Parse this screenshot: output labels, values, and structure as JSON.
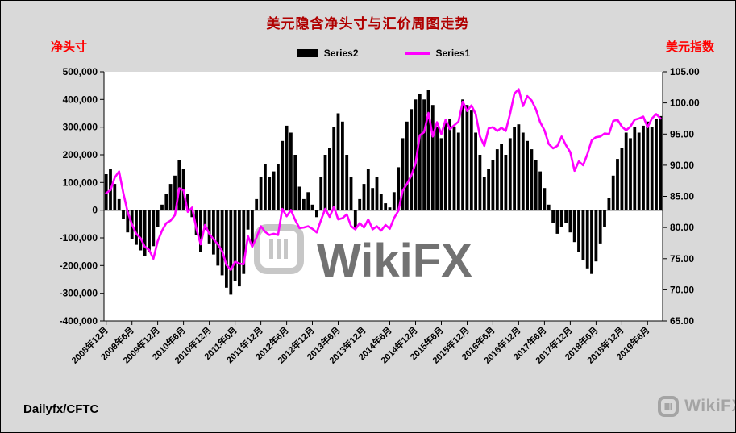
{
  "watermark": {
    "text": "WikiFX",
    "corner_text": "WikiFX"
  },
  "colors": {
    "outer_bg": "#d9d9d9",
    "plot_bg": "#ffffff",
    "title": "#b00000",
    "axis_title_red": "#ff0000",
    "watermark": "#9b9b9b"
  },
  "chart_data": {
    "type": "combo",
    "title": "美元隐含净头寸与汇价周图走势",
    "source": "Dailyfx/CFTC",
    "x_axis": {
      "start": "2008-12",
      "step_months": 1,
      "points": 130,
      "tick_indices": [
        0,
        6,
        12,
        18,
        24,
        30,
        36,
        42,
        48,
        54,
        60,
        66,
        72,
        78,
        84,
        90,
        96,
        102,
        108,
        114,
        120,
        126
      ],
      "tick_labels": [
        "2008年12月",
        "2009年6月",
        "2009年12月",
        "2010年6月",
        "2010年12月",
        "2011年6月",
        "2011年12月",
        "2012年6月",
        "2012年12月",
        "2013年6月",
        "2013年12月",
        "2014年6月",
        "2014年12月",
        "2015年6月",
        "2015年12月",
        "2016年6月",
        "2016年12月",
        "2017年6月",
        "2017年12月",
        "2018年6月",
        "2018年12月",
        "2019年6月"
      ]
    },
    "left_axis": {
      "title": "净头寸",
      "min": -400000,
      "max": 500000,
      "step": 100000,
      "tick_labels": [
        "500,000",
        "400,000",
        "300,000",
        "200,000",
        "100,000",
        "0",
        "-100,000",
        "-200,000",
        "-300,000",
        "-400,000"
      ]
    },
    "right_axis": {
      "title": "美元指数",
      "min": 65,
      "max": 105,
      "step": 5,
      "tick_labels": [
        "105.00",
        "100.00",
        "95.00",
        "90.00",
        "85.00",
        "80.00",
        "75.00",
        "70.00",
        "65.00"
      ]
    },
    "series": [
      {
        "name": "Series2",
        "type": "bar",
        "axis": "left",
        "color": "#000000",
        "values": [
          130000,
          150000,
          95000,
          40000,
          -30000,
          -80000,
          -105000,
          -125000,
          -145000,
          -165000,
          -150000,
          -130000,
          -60000,
          20000,
          60000,
          95000,
          125000,
          180000,
          150000,
          60000,
          -25000,
          -90000,
          -150000,
          -70000,
          -120000,
          -160000,
          -200000,
          -235000,
          -280000,
          -305000,
          -255000,
          -275000,
          -230000,
          -70000,
          -125000,
          40000,
          120000,
          165000,
          120000,
          140000,
          165000,
          250000,
          305000,
          280000,
          200000,
          85000,
          40000,
          65000,
          20000,
          -25000,
          120000,
          200000,
          225000,
          300000,
          350000,
          320000,
          200000,
          120000,
          -65000,
          40000,
          95000,
          150000,
          80000,
          120000,
          60000,
          25000,
          10000,
          65000,
          155000,
          260000,
          320000,
          365000,
          400000,
          420000,
          400000,
          435000,
          380000,
          300000,
          260000,
          320000,
          330000,
          300000,
          280000,
          400000,
          380000,
          360000,
          280000,
          200000,
          120000,
          150000,
          180000,
          220000,
          240000,
          200000,
          260000,
          300000,
          310000,
          280000,
          250000,
          220000,
          180000,
          140000,
          80000,
          20000,
          -45000,
          -85000,
          -60000,
          -45000,
          -80000,
          -115000,
          -150000,
          -180000,
          -210000,
          -230000,
          -185000,
          -120000,
          -60000,
          45000,
          125000,
          185000,
          225000,
          280000,
          260000,
          300000,
          280000,
          305000,
          320000,
          300000,
          330000,
          340000
        ]
      },
      {
        "name": "Series1",
        "type": "line",
        "axis": "right",
        "color": "#ff00ff",
        "values": [
          85.5,
          86.0,
          88.0,
          89.0,
          85.5,
          82.5,
          80.5,
          79.0,
          78.3,
          76.9,
          76.4,
          75.0,
          77.8,
          79.5,
          80.7,
          81.1,
          82.0,
          86.3,
          86.0,
          82.5,
          83.2,
          79.8,
          77.3,
          80.4,
          79.0,
          78.1,
          77.3,
          76.2,
          74.0,
          73.2,
          74.5,
          74.2,
          74.1,
          78.6,
          76.9,
          78.4,
          80.2,
          79.3,
          78.8,
          79.0,
          78.8,
          83.0,
          81.8,
          82.8,
          81.2,
          79.9,
          80.0,
          80.2,
          79.8,
          79.2,
          81.2,
          83.0,
          81.7,
          83.3,
          81.3,
          81.5,
          82.1,
          80.2,
          79.7,
          80.7,
          80.0,
          81.3,
          79.7,
          80.2,
          79.5,
          80.4,
          79.8,
          81.5,
          82.7,
          85.9,
          87.0,
          88.3,
          90.3,
          94.8,
          95.3,
          98.4,
          94.6,
          96.9,
          95.0,
          97.3,
          95.8,
          96.4,
          97.0,
          100.2,
          98.7,
          99.6,
          98.2,
          94.6,
          93.1,
          95.9,
          96.1,
          95.5,
          96.0,
          95.5,
          98.3,
          101.5,
          102.2,
          99.5,
          101.1,
          100.4,
          99.0,
          96.9,
          95.6,
          93.4,
          92.7,
          93.1,
          94.6,
          93.2,
          92.1,
          89.1,
          90.6,
          90.0,
          91.8,
          94.0,
          94.5,
          94.6,
          95.1,
          95.0,
          97.1,
          97.3,
          96.2,
          95.6,
          96.2,
          97.3,
          97.5,
          97.8,
          96.1,
          97.5,
          98.2,
          97.5
        ]
      }
    ]
  }
}
